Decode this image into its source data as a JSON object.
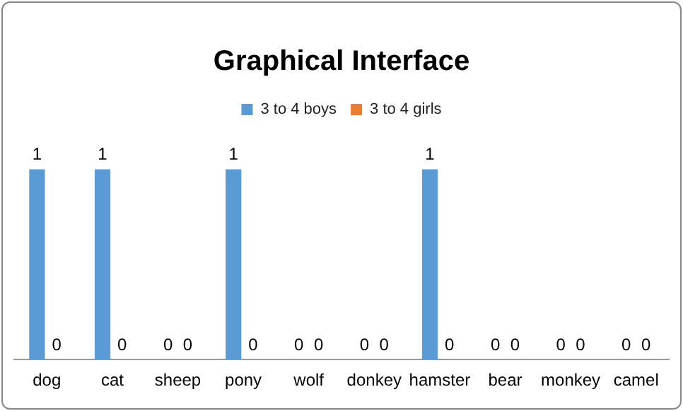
{
  "chart_data": {
    "type": "bar",
    "title": "Graphical Interface",
    "categories": [
      "dog",
      "cat",
      "sheep",
      "pony",
      "wolf",
      "donkey",
      "hamster",
      "bear",
      "monkey",
      "camel"
    ],
    "series": [
      {
        "name": "3 to 4 boys",
        "color": "#5b9bd5",
        "values": [
          1,
          1,
          0,
          1,
          0,
          0,
          1,
          0,
          0,
          0
        ]
      },
      {
        "name": "3 to 4 girls",
        "color": "#ed7d31",
        "values": [
          0,
          0,
          0,
          0,
          0,
          0,
          0,
          0,
          0,
          0
        ]
      }
    ],
    "data_labels": true,
    "legend": "top",
    "grid": false
  }
}
